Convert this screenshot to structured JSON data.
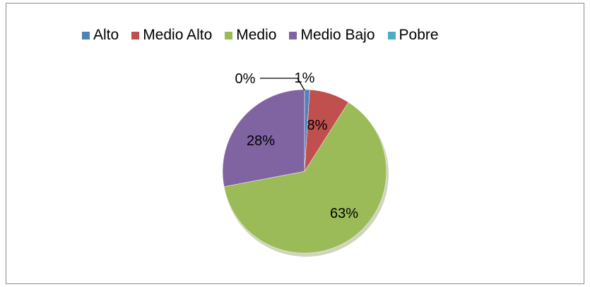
{
  "chart_data": {
    "type": "pie",
    "title": "",
    "categories": [
      "Alto",
      "Medio Alto",
      "Medio",
      "Medio Bajo",
      "Pobre"
    ],
    "values": [
      1,
      8,
      63,
      28,
      0
    ],
    "data_labels": [
      "1%",
      "8%",
      "63%",
      "28%",
      "0%"
    ],
    "colors": [
      "#4F81BD",
      "#C0504D",
      "#9BBB59",
      "#8064A2",
      "#4BACC6"
    ],
    "legend_position": "top",
    "unit": "%"
  }
}
